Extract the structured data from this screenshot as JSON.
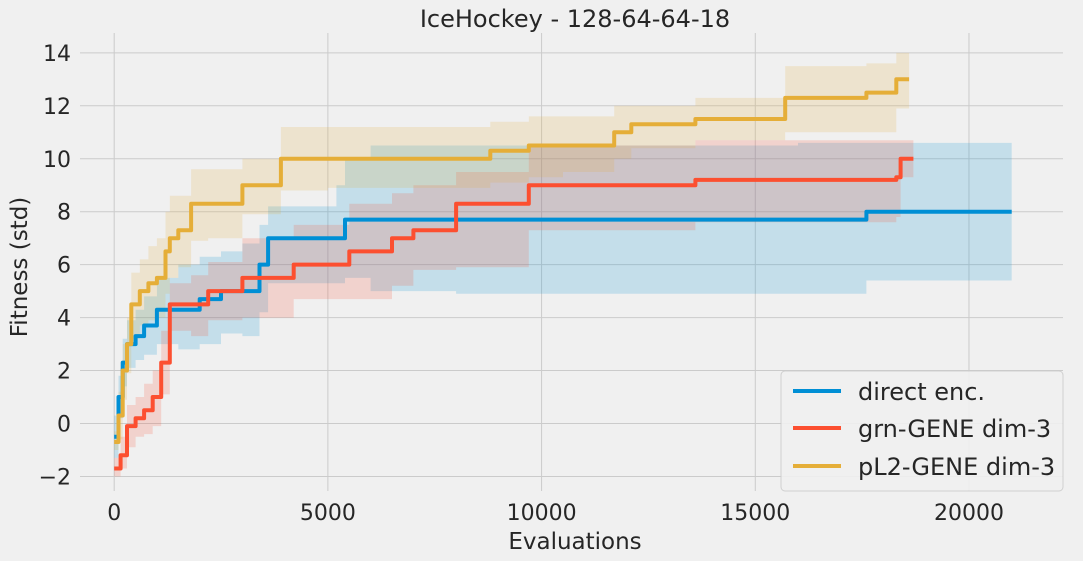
{
  "chart_data": {
    "type": "line",
    "title": "IceHockey - 128-64-64-18",
    "xlabel": "Evaluations",
    "ylabel": "Fitness (std)",
    "xlim": [
      -800,
      22200
    ],
    "ylim": [
      -2.55,
      14.75
    ],
    "xticks": [
      0,
      5000,
      10000,
      15000,
      20000
    ],
    "xtick_labels": [
      "0",
      "5000",
      "10000",
      "15000",
      "20000"
    ],
    "yticks": [
      -2,
      0,
      2,
      4,
      6,
      8,
      10,
      12,
      14
    ],
    "ytick_labels": [
      "−2",
      "0",
      "2",
      "4",
      "6",
      "8",
      "10",
      "12",
      "14"
    ],
    "grid": true,
    "legend_position": "bottom-right",
    "series": [
      {
        "name": "direct enc.",
        "color": "#008fd5",
        "x": [
          0,
          100,
          200,
          300,
          500,
          700,
          1000,
          1500,
          2000,
          2500,
          3000,
          3400,
          3600,
          5200,
          5400,
          6000,
          8000,
          10000,
          12000,
          14000,
          16000,
          17500,
          17600,
          19000,
          21000
        ],
        "y": [
          -0.5,
          1.0,
          2.3,
          3.0,
          3.3,
          3.7,
          4.3,
          4.3,
          4.7,
          5.0,
          5.0,
          6.0,
          7.0,
          7.0,
          7.7,
          7.7,
          7.7,
          7.7,
          7.7,
          7.7,
          7.7,
          7.7,
          8.0,
          8.0,
          8.0
        ],
        "upper": [
          0.3,
          1.8,
          3.2,
          3.9,
          4.3,
          4.8,
          5.5,
          6.0,
          6.3,
          6.5,
          6.8,
          7.5,
          8.2,
          9.0,
          10.0,
          10.5,
          10.5,
          10.5,
          10.5,
          10.5,
          10.6,
          10.6,
          10.6,
          10.6,
          10.6
        ],
        "lower": [
          -1.3,
          0.2,
          1.4,
          2.1,
          2.4,
          2.6,
          3.0,
          2.8,
          3.0,
          3.4,
          3.3,
          4.2,
          5.3,
          5.3,
          5.5,
          5.0,
          4.9,
          4.9,
          4.9,
          4.9,
          4.9,
          4.9,
          5.4,
          5.4,
          5.4
        ]
      },
      {
        "name": "grn-GENE dim-3",
        "color": "#fc4f30",
        "x": [
          0,
          150,
          300,
          500,
          700,
          900,
          1100,
          1300,
          1800,
          2200,
          3000,
          4200,
          5500,
          6500,
          7000,
          8000,
          9700,
          11000,
          13600,
          15000,
          18300,
          18400,
          18700
        ],
        "y": [
          -1.7,
          -1.2,
          -0.1,
          0.2,
          0.5,
          1.0,
          2.3,
          4.5,
          4.5,
          5.0,
          5.5,
          6.0,
          6.5,
          7.0,
          7.3,
          8.3,
          9.0,
          9.0,
          9.2,
          9.2,
          9.3,
          10.0,
          10.0
        ],
        "upper": [
          -1.3,
          -0.5,
          0.7,
          1.0,
          1.5,
          2.0,
          3.5,
          5.3,
          5.6,
          6.1,
          7.0,
          7.5,
          8.3,
          8.7,
          9.0,
          9.5,
          10.5,
          10.5,
          10.7,
          10.7,
          10.7,
          10.7,
          10.7
        ],
        "lower": [
          -2.0,
          -1.7,
          -0.9,
          -0.5,
          -0.4,
          -0.1,
          1.1,
          3.5,
          3.3,
          3.9,
          4.0,
          4.7,
          4.7,
          5.2,
          5.8,
          5.9,
          7.3,
          7.3,
          7.6,
          7.6,
          7.8,
          9.3,
          9.3
        ]
      },
      {
        "name": "pL2-GENE dim-3",
        "color": "#e5ae38",
        "x": [
          0,
          100,
          200,
          300,
          400,
          600,
          800,
          1000,
          1200,
          1300,
          1500,
          1800,
          2200,
          3000,
          3900,
          5000,
          7000,
          8800,
          9700,
          10500,
          11700,
          12100,
          13600,
          14500,
          15700,
          16500,
          17600,
          18300,
          18600
        ],
        "y": [
          -0.7,
          0.3,
          2.0,
          3.0,
          4.5,
          5.0,
          5.3,
          5.5,
          6.5,
          7.0,
          7.3,
          8.3,
          8.3,
          9.0,
          10.0,
          10.0,
          10.0,
          10.3,
          10.5,
          10.5,
          11.0,
          11.3,
          11.5,
          11.5,
          12.3,
          12.3,
          12.5,
          13.0,
          13.0
        ],
        "upper": [
          -0.3,
          1.2,
          3.0,
          4.0,
          5.7,
          6.2,
          6.7,
          7.0,
          8.0,
          8.6,
          8.6,
          9.6,
          9.6,
          10.0,
          11.2,
          11.2,
          11.2,
          11.4,
          11.6,
          11.6,
          12.0,
          12.0,
          12.3,
          12.3,
          13.5,
          13.5,
          13.6,
          14.0,
          14.0
        ],
        "lower": [
          -1.0,
          -0.6,
          0.9,
          1.9,
          3.2,
          3.7,
          3.9,
          4.0,
          4.9,
          5.5,
          5.9,
          6.9,
          7.0,
          7.9,
          8.8,
          8.9,
          8.9,
          9.1,
          9.3,
          9.5,
          10.0,
          10.4,
          10.7,
          10.7,
          11.0,
          11.0,
          11.0,
          11.9,
          11.9
        ]
      }
    ]
  }
}
